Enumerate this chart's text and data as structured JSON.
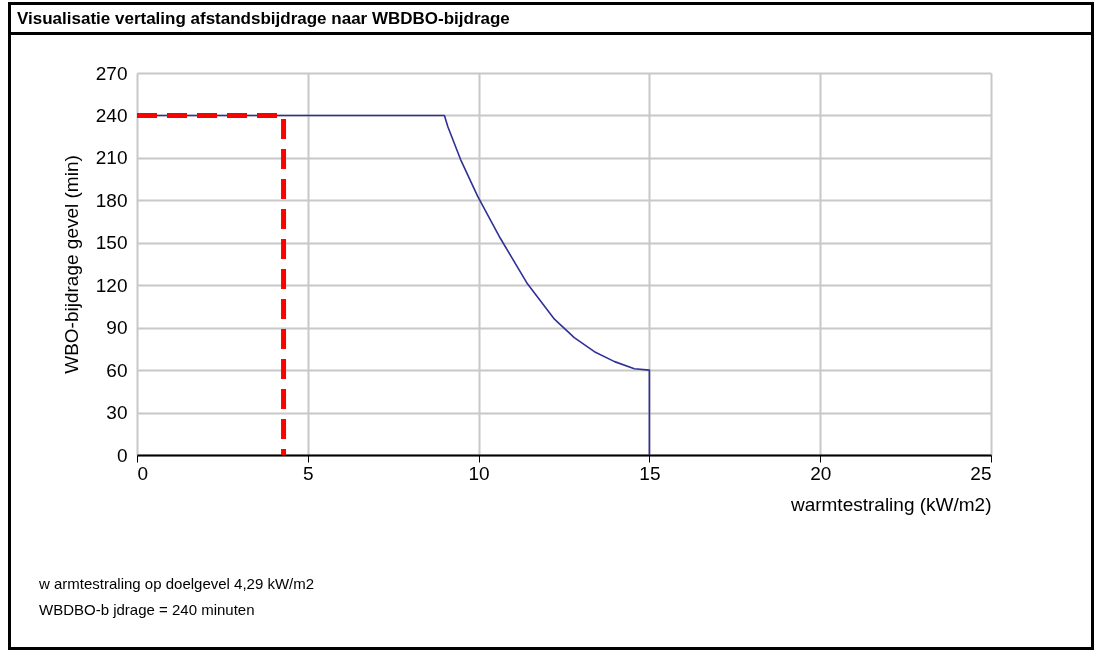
{
  "chart_data": {
    "type": "line",
    "title": "Visualisatie vertaling afstandsbijdrage naar WBDBO-bijdrage",
    "xlabel": "warmtestraling  (kW/m2)",
    "ylabel": "WBO-bijdrage  gevel  (min)",
    "annotations": [
      "w armtestraling op doelgevel 4,29 kW/m2",
      "WBDBO-b jdrage = 240 minuten"
    ],
    "series": [
      {
        "color": "#30309a",
        "line_style": "solid",
        "x": [
          0,
          9.0,
          9.1,
          9.47,
          9.97,
          10.64,
          11.43,
          12.22,
          12.8,
          13.39,
          13.98,
          14.56,
          15,
          15
        ],
        "values": [
          240,
          240,
          232,
          209,
          183,
          153,
          121,
          96,
          83,
          73,
          66,
          61,
          60,
          0
        ]
      },
      {
        "color": "#ff0000",
        "line_style": "dashed",
        "x": [
          0,
          4.29,
          4.29
        ],
        "values": [
          240,
          240,
          0
        ]
      }
    ],
    "xlim": [
      0,
      25
    ],
    "xticks": [
      0,
      5,
      10,
      15,
      20,
      25
    ],
    "ylim": [
      0,
      270
    ],
    "yticks": [
      0,
      30,
      60,
      90,
      120,
      150,
      180,
      210,
      240,
      270
    ],
    "grid": true,
    "marker": "none"
  }
}
